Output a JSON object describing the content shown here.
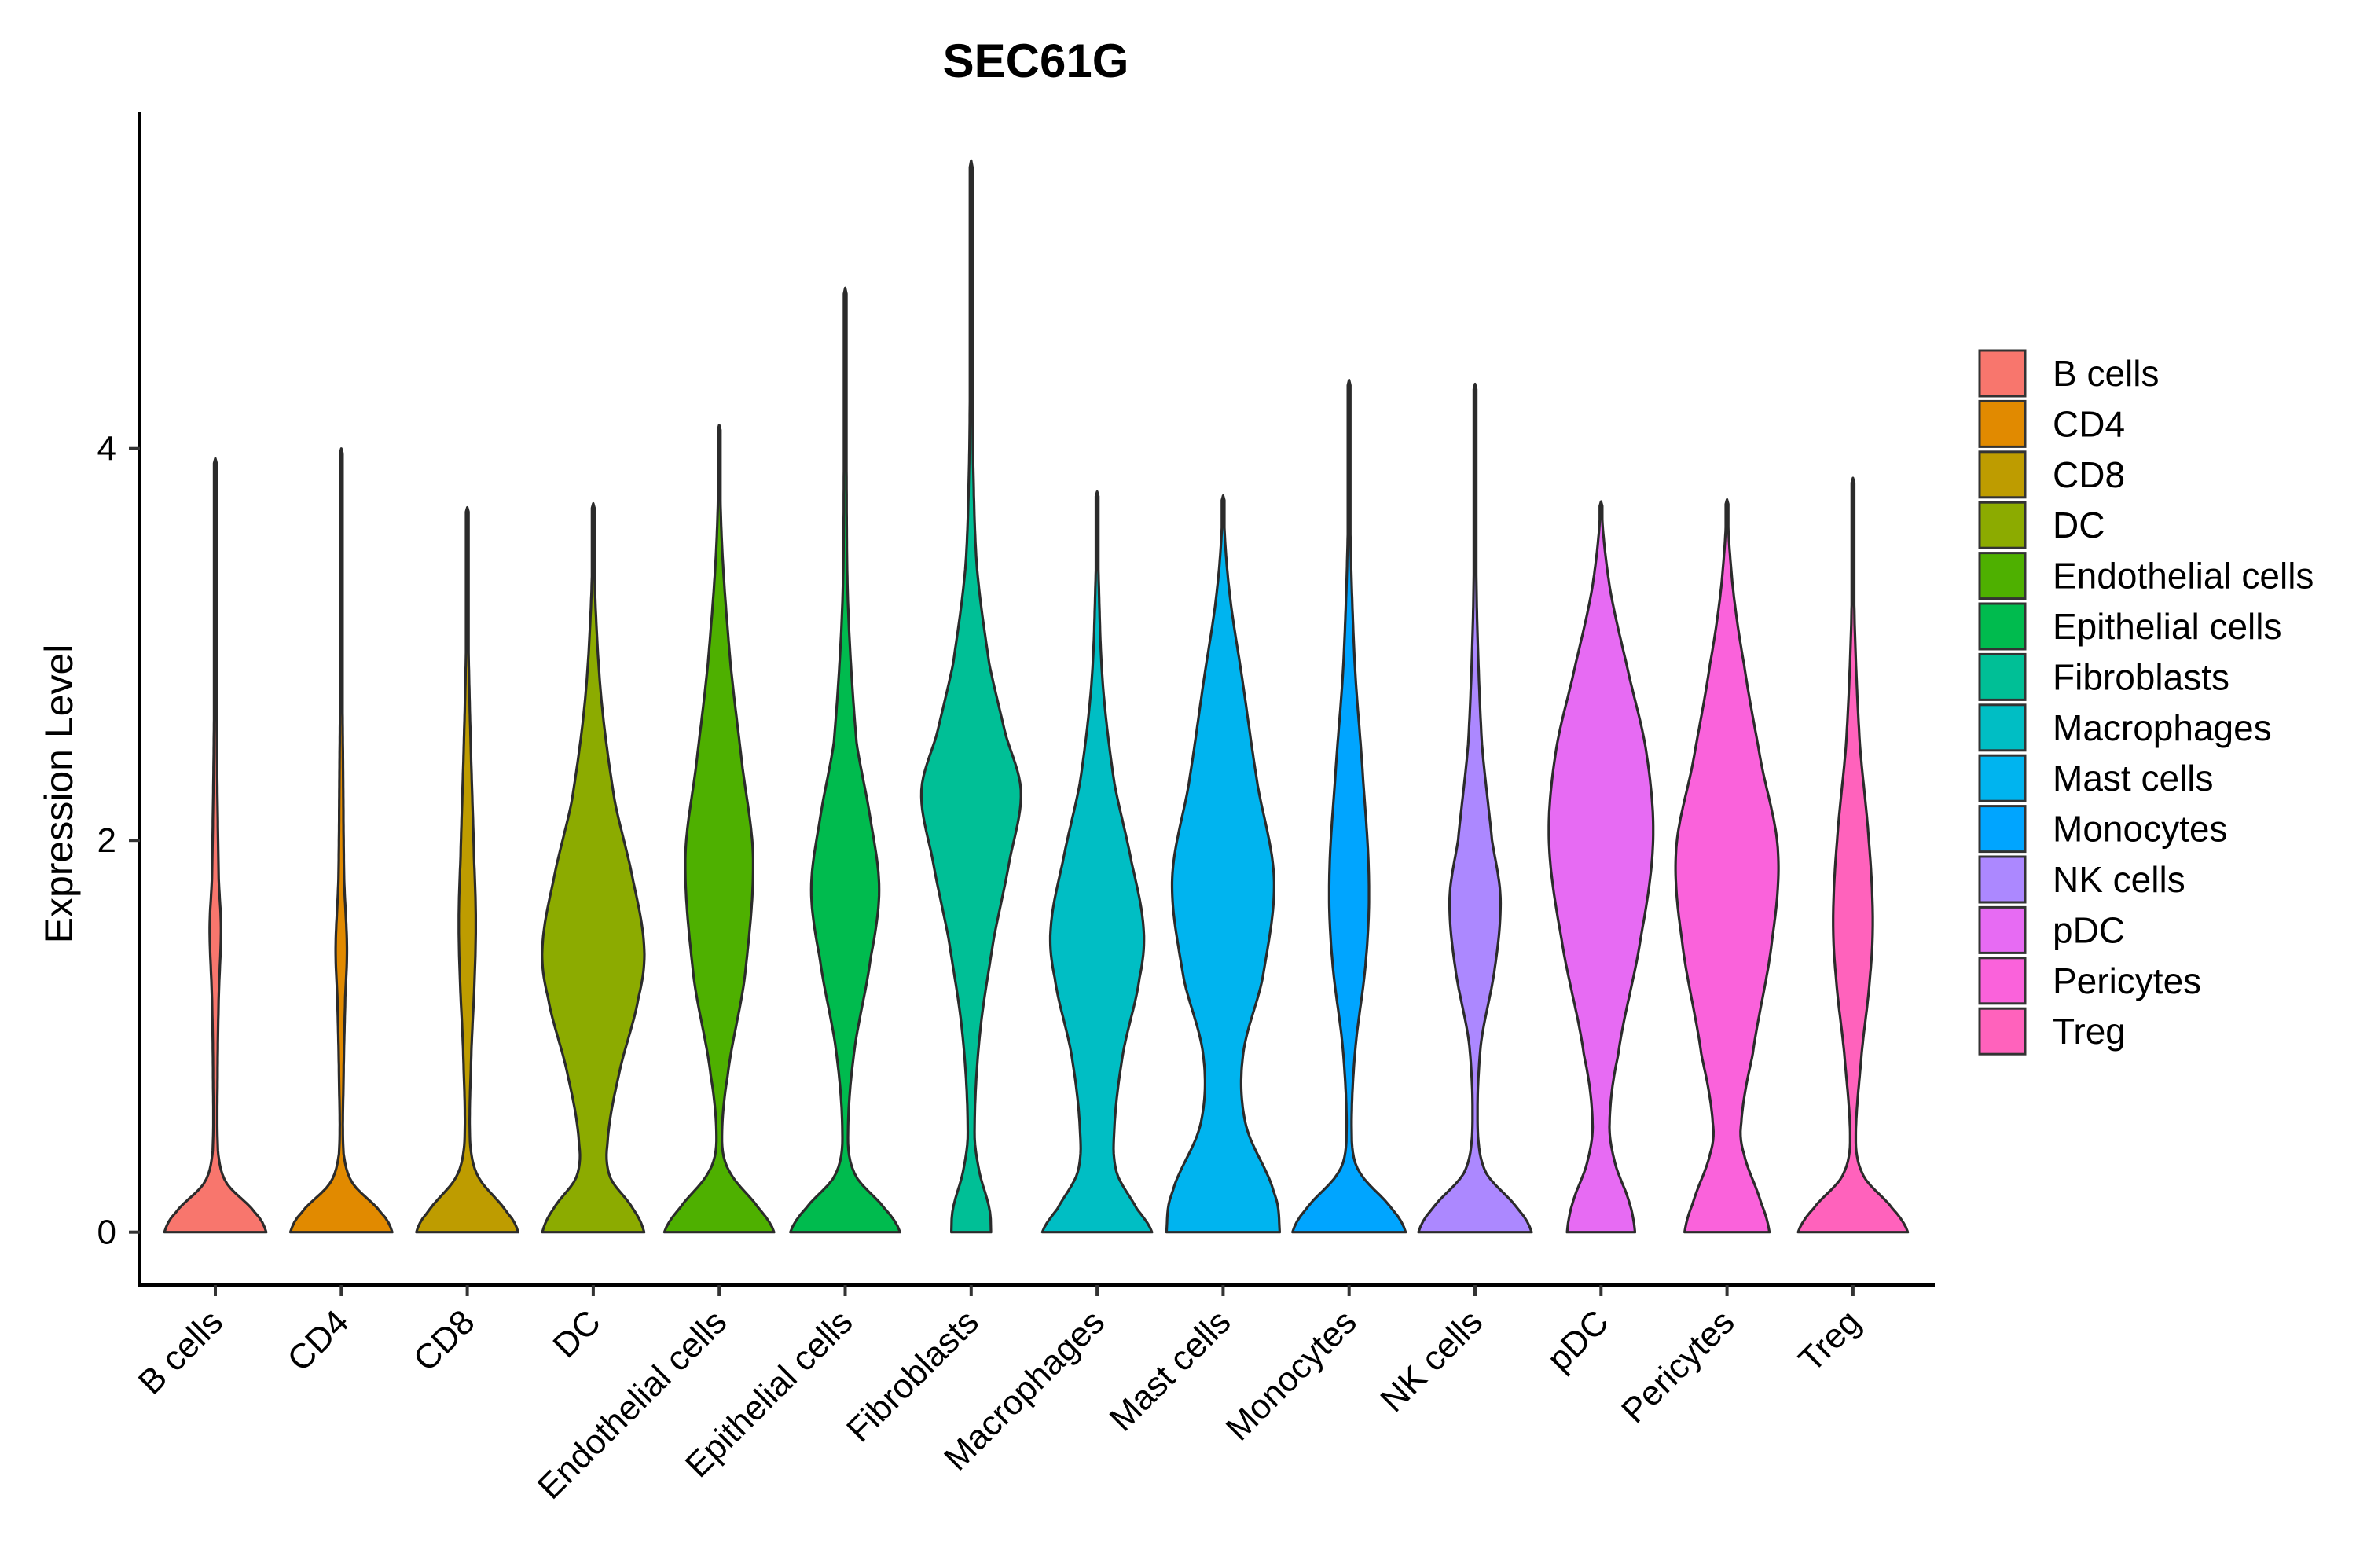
{
  "chart_data": {
    "type": "violin",
    "title": "SEC61G",
    "xlabel": "",
    "ylabel": "Expression Level",
    "ylim": [
      -0.27,
      5.72
    ],
    "yticks": [
      0,
      2,
      4
    ],
    "grid": false,
    "legend_position": "right",
    "series": [
      {
        "name": "B cells",
        "color": "#F8766D",
        "max": 3.95,
        "density": [
          [
            0,
            0.9
          ],
          [
            0.1,
            0.7
          ],
          [
            0.25,
            0.2
          ],
          [
            0.4,
            0.05
          ],
          [
            0.8,
            0.04
          ],
          [
            1.2,
            0.06
          ],
          [
            1.55,
            0.1
          ],
          [
            1.8,
            0.06
          ],
          [
            2.4,
            0.03
          ],
          [
            3.1,
            0.01
          ],
          [
            3.95,
            0
          ]
        ]
      },
      {
        "name": "CD4",
        "color": "#E18A00",
        "max": 4.0,
        "density": [
          [
            0,
            0.9
          ],
          [
            0.1,
            0.7
          ],
          [
            0.25,
            0.2
          ],
          [
            0.4,
            0.04
          ],
          [
            0.8,
            0.04
          ],
          [
            1.2,
            0.07
          ],
          [
            1.45,
            0.1
          ],
          [
            1.8,
            0.05
          ],
          [
            2.4,
            0.03
          ],
          [
            3.1,
            0.01
          ],
          [
            4.0,
            0
          ]
        ]
      },
      {
        "name": "CD8",
        "color": "#BE9C00",
        "max": 3.7,
        "density": [
          [
            0,
            0.9
          ],
          [
            0.1,
            0.7
          ],
          [
            0.28,
            0.2
          ],
          [
            0.45,
            0.05
          ],
          [
            0.9,
            0.07
          ],
          [
            1.3,
            0.13
          ],
          [
            1.6,
            0.15
          ],
          [
            1.9,
            0.12
          ],
          [
            2.5,
            0.06
          ],
          [
            3.0,
            0.02
          ],
          [
            3.7,
            0
          ]
        ]
      },
      {
        "name": "DC",
        "color": "#8CAB00",
        "max": 3.72,
        "density": [
          [
            0,
            0.9
          ],
          [
            0.12,
            0.7
          ],
          [
            0.28,
            0.3
          ],
          [
            0.45,
            0.25
          ],
          [
            0.8,
            0.45
          ],
          [
            1.2,
            0.8
          ],
          [
            1.45,
            0.9
          ],
          [
            1.8,
            0.7
          ],
          [
            2.2,
            0.38
          ],
          [
            2.7,
            0.15
          ],
          [
            3.2,
            0.04
          ],
          [
            3.72,
            0
          ]
        ]
      },
      {
        "name": "Endothelial cells",
        "color": "#4EB000",
        "max": 4.12,
        "density": [
          [
            0,
            0.97
          ],
          [
            0.12,
            0.7
          ],
          [
            0.3,
            0.2
          ],
          [
            0.45,
            0.05
          ],
          [
            0.8,
            0.15
          ],
          [
            1.3,
            0.45
          ],
          [
            1.9,
            0.6
          ],
          [
            2.4,
            0.4
          ],
          [
            2.9,
            0.2
          ],
          [
            3.5,
            0.05
          ],
          [
            4.12,
            0
          ]
        ]
      },
      {
        "name": "Epithelial cells",
        "color": "#00BB4E",
        "max": 4.82,
        "density": [
          [
            0,
            0.97
          ],
          [
            0.12,
            0.7
          ],
          [
            0.28,
            0.2
          ],
          [
            0.45,
            0.05
          ],
          [
            0.9,
            0.15
          ],
          [
            1.4,
            0.45
          ],
          [
            1.75,
            0.6
          ],
          [
            2.1,
            0.45
          ],
          [
            2.5,
            0.2
          ],
          [
            3.2,
            0.05
          ],
          [
            4.0,
            0.02
          ],
          [
            4.82,
            0
          ]
        ]
      },
      {
        "name": "Fibroblasts",
        "color": "#00BF96",
        "max": 5.47,
        "density": [
          [
            0,
            0.35
          ],
          [
            0.12,
            0.32
          ],
          [
            0.3,
            0.15
          ],
          [
            0.5,
            0.06
          ],
          [
            1.0,
            0.15
          ],
          [
            1.5,
            0.4
          ],
          [
            1.9,
            0.68
          ],
          [
            2.25,
            0.88
          ],
          [
            2.55,
            0.6
          ],
          [
            2.9,
            0.32
          ],
          [
            3.4,
            0.1
          ],
          [
            4.0,
            0.03
          ],
          [
            5.47,
            0
          ]
        ]
      },
      {
        "name": "Macrophages",
        "color": "#00BEC4",
        "max": 3.78,
        "density": [
          [
            0,
            0.97
          ],
          [
            0.12,
            0.7
          ],
          [
            0.3,
            0.35
          ],
          [
            0.5,
            0.3
          ],
          [
            0.9,
            0.45
          ],
          [
            1.3,
            0.75
          ],
          [
            1.55,
            0.82
          ],
          [
            1.9,
            0.6
          ],
          [
            2.3,
            0.3
          ],
          [
            2.8,
            0.1
          ],
          [
            3.3,
            0.03
          ],
          [
            3.78,
            0
          ]
        ]
      },
      {
        "name": "Mast cells",
        "color": "#00B4EF",
        "max": 3.76,
        "density": [
          [
            0,
            1.0
          ],
          [
            0.2,
            0.9
          ],
          [
            0.55,
            0.4
          ],
          [
            0.9,
            0.35
          ],
          [
            1.3,
            0.7
          ],
          [
            1.8,
            0.9
          ],
          [
            2.3,
            0.6
          ],
          [
            2.8,
            0.35
          ],
          [
            3.3,
            0.1
          ],
          [
            3.76,
            0
          ]
        ]
      },
      {
        "name": "Monocytes",
        "color": "#00A5FF",
        "max": 4.35,
        "density": [
          [
            0,
            1.0
          ],
          [
            0.12,
            0.75
          ],
          [
            0.3,
            0.2
          ],
          [
            0.45,
            0.05
          ],
          [
            0.9,
            0.1
          ],
          [
            1.4,
            0.3
          ],
          [
            1.8,
            0.35
          ],
          [
            2.3,
            0.25
          ],
          [
            2.9,
            0.1
          ],
          [
            3.6,
            0.02
          ],
          [
            4.35,
            0
          ]
        ]
      },
      {
        "name": "NK cells",
        "color": "#AC88FF",
        "max": 4.33,
        "density": [
          [
            0,
            1.0
          ],
          [
            0.12,
            0.75
          ],
          [
            0.3,
            0.2
          ],
          [
            0.5,
            0.05
          ],
          [
            0.95,
            0.1
          ],
          [
            1.35,
            0.35
          ],
          [
            1.7,
            0.45
          ],
          [
            2.0,
            0.3
          ],
          [
            2.5,
            0.12
          ],
          [
            3.2,
            0.03
          ],
          [
            4.33,
            0
          ]
        ]
      },
      {
        "name": "pDC",
        "color": "#E76BF3",
        "max": 3.73,
        "density": [
          [
            0,
            0.6
          ],
          [
            0.15,
            0.5
          ],
          [
            0.35,
            0.25
          ],
          [
            0.55,
            0.15
          ],
          [
            0.9,
            0.3
          ],
          [
            1.5,
            0.7
          ],
          [
            2.0,
            0.92
          ],
          [
            2.45,
            0.8
          ],
          [
            2.9,
            0.45
          ],
          [
            3.3,
            0.15
          ],
          [
            3.73,
            0
          ]
        ]
      },
      {
        "name": "Pericytes",
        "color": "#FA62DB",
        "max": 3.74,
        "density": [
          [
            0,
            0.75
          ],
          [
            0.15,
            0.6
          ],
          [
            0.4,
            0.3
          ],
          [
            0.55,
            0.25
          ],
          [
            0.9,
            0.45
          ],
          [
            1.5,
            0.8
          ],
          [
            1.95,
            0.9
          ],
          [
            2.4,
            0.6
          ],
          [
            2.9,
            0.3
          ],
          [
            3.3,
            0.1
          ],
          [
            3.74,
            0
          ]
        ]
      },
      {
        "name": "Treg",
        "color": "#FF62BC",
        "max": 3.85,
        "density": [
          [
            0,
            0.97
          ],
          [
            0.12,
            0.7
          ],
          [
            0.28,
            0.2
          ],
          [
            0.45,
            0.05
          ],
          [
            0.9,
            0.15
          ],
          [
            1.3,
            0.3
          ],
          [
            1.6,
            0.35
          ],
          [
            2.0,
            0.28
          ],
          [
            2.5,
            0.12
          ],
          [
            3.1,
            0.03
          ],
          [
            3.85,
            0
          ]
        ]
      }
    ]
  }
}
